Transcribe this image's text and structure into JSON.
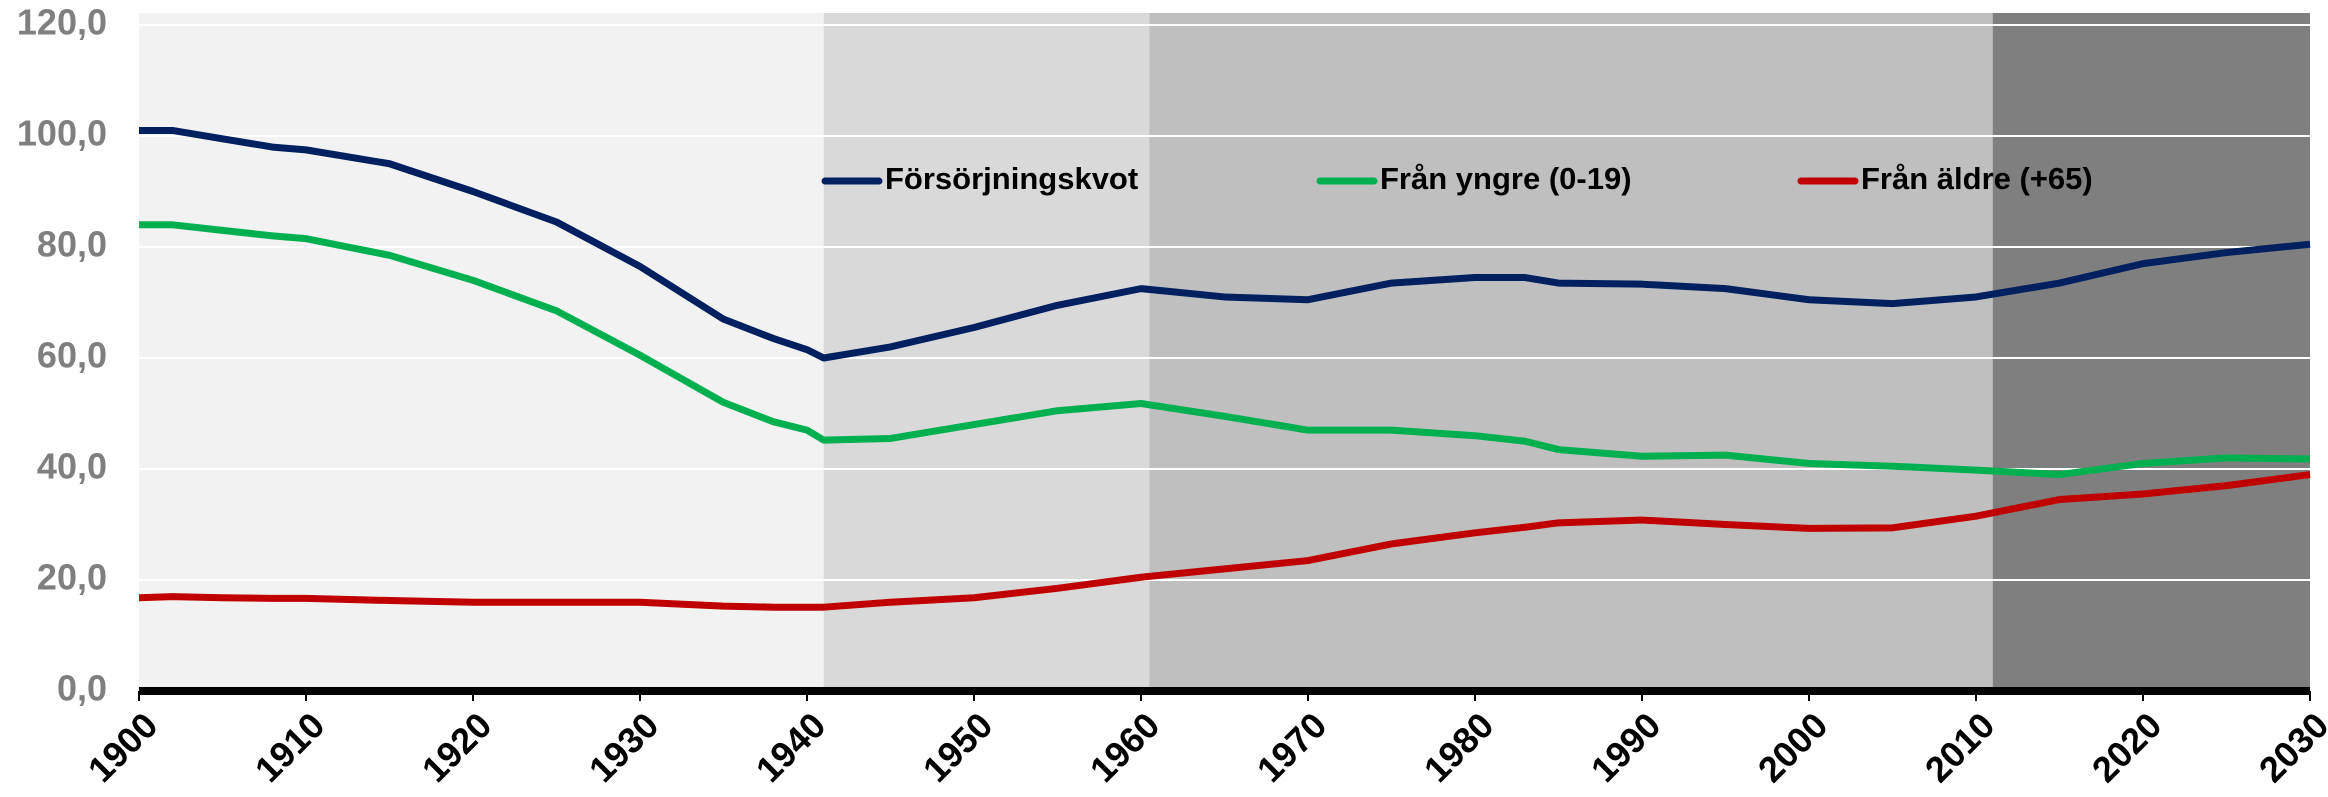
{
  "chart_data": {
    "type": "line",
    "x": [
      1900,
      1902,
      1905,
      1908,
      1910,
      1915,
      1920,
      1925,
      1930,
      1935,
      1938,
      1940,
      1941,
      1945,
      1950,
      1955,
      1960,
      1965,
      1970,
      1975,
      1980,
      1983,
      1985,
      1990,
      1995,
      2000,
      2005,
      2010,
      2015,
      2020,
      2025,
      2030
    ],
    "series": [
      {
        "name": "Försörjningskvot",
        "color": "#002060",
        "values": [
          101,
          101,
          99.5,
          98,
          97.5,
          95,
          90,
          84.5,
          76.5,
          67,
          63.5,
          61.5,
          60,
          62,
          65.5,
          69.5,
          72.5,
          71,
          70.5,
          73.5,
          74.5,
          74.5,
          73.5,
          73.3,
          72.5,
          70.5,
          69.8,
          71,
          73.5,
          77,
          79,
          80.5
        ]
      },
      {
        "name": "Från yngre (0-19)",
        "color": "#00b050",
        "values": [
          84,
          84,
          83,
          82,
          81.5,
          78.5,
          74,
          68.5,
          60.5,
          52,
          48.5,
          47,
          45.2,
          45.5,
          48,
          50.5,
          51.8,
          49.5,
          47,
          47,
          46,
          45,
          43.5,
          42.3,
          42.5,
          41,
          40.5,
          39.8,
          39,
          41,
          42,
          41.8
        ]
      },
      {
        "name": "Från äldre (+65)",
        "color": "#c00000",
        "values": [
          16.8,
          17,
          16.8,
          16.7,
          16.7,
          16.3,
          16,
          16,
          16,
          15.3,
          15.1,
          15.1,
          15.1,
          16,
          16.8,
          18.5,
          20.5,
          22,
          23.5,
          26.5,
          28.5,
          29.5,
          30.3,
          30.8,
          30,
          29.3,
          29.4,
          31.5,
          34.5,
          35.5,
          37,
          39
        ]
      }
    ],
    "bands": [
      {
        "from": 1900,
        "to": 1941,
        "color": "#f2f2f2"
      },
      {
        "from": 1941,
        "to": 1960.5,
        "color": "#d9d9d9"
      },
      {
        "from": 1960.5,
        "to": 2011,
        "color": "#bfbfbf"
      },
      {
        "from": 2011,
        "to": 2030,
        "color": "#7f7f7f"
      }
    ],
    "xlim": [
      1900,
      2030
    ],
    "xticks": [
      1900,
      1910,
      1920,
      1930,
      1940,
      1950,
      1960,
      1970,
      1980,
      1990,
      2000,
      2010,
      2020,
      2030
    ],
    "ylim": [
      0,
      120
    ],
    "yticks": [
      {
        "value": 0,
        "label": "0,0"
      },
      {
        "value": 20,
        "label": "20,0"
      },
      {
        "value": 40,
        "label": "40,0"
      },
      {
        "value": 60,
        "label": "60,0"
      },
      {
        "value": 80,
        "label": "80,0"
      },
      {
        "value": 100,
        "label": "100,0"
      },
      {
        "value": 120,
        "label": "120,0"
      }
    ],
    "grid": true,
    "legend": "top"
  }
}
